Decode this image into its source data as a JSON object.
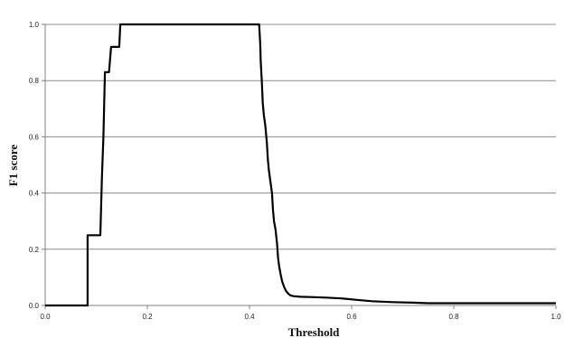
{
  "chart_data": {
    "type": "line",
    "title": "",
    "xlabel": "Threshold",
    "ylabel": "F1 score",
    "xlim": [
      0,
      1
    ],
    "ylim": [
      0,
      1
    ],
    "x_ticks": [
      "0.0",
      "0.2",
      "0.4",
      "0.6",
      "0.8",
      "1.0"
    ],
    "y_ticks": [
      "0.0",
      "0.2",
      "0.4",
      "0.6",
      "0.8",
      "1.0"
    ],
    "grid": "horizontal",
    "legend": "none",
    "line_color": "#000000",
    "series": [
      {
        "x": [
          0.0,
          0.083,
          0.083,
          0.085,
          0.105,
          0.108,
          0.111,
          0.114,
          0.117,
          0.122,
          0.125,
          0.129,
          0.132,
          0.145,
          0.147,
          0.419,
          0.421,
          0.422,
          0.424,
          0.426,
          0.428,
          0.431,
          0.434,
          0.436,
          0.438,
          0.441,
          0.444,
          0.446,
          0.448,
          0.451,
          0.454,
          0.456,
          0.458,
          0.461,
          0.464,
          0.468,
          0.472,
          0.476,
          0.48,
          0.486,
          0.492,
          0.5,
          0.52,
          0.55,
          0.58,
          0.61,
          0.64,
          0.68,
          0.72,
          0.75,
          0.8,
          0.9,
          1.0
        ],
        "y": [
          0.0,
          0.0,
          0.25,
          0.25,
          0.25,
          0.25,
          0.45,
          0.6,
          0.83,
          0.83,
          0.83,
          0.92,
          0.92,
          0.92,
          1.0,
          1.0,
          0.93,
          0.87,
          0.8,
          0.72,
          0.68,
          0.64,
          0.58,
          0.52,
          0.48,
          0.44,
          0.4,
          0.34,
          0.3,
          0.27,
          0.22,
          0.17,
          0.14,
          0.11,
          0.085,
          0.065,
          0.05,
          0.042,
          0.036,
          0.033,
          0.032,
          0.031,
          0.03,
          0.028,
          0.025,
          0.02,
          0.015,
          0.012,
          0.01,
          0.008,
          0.008,
          0.008,
          0.008
        ]
      }
    ]
  }
}
